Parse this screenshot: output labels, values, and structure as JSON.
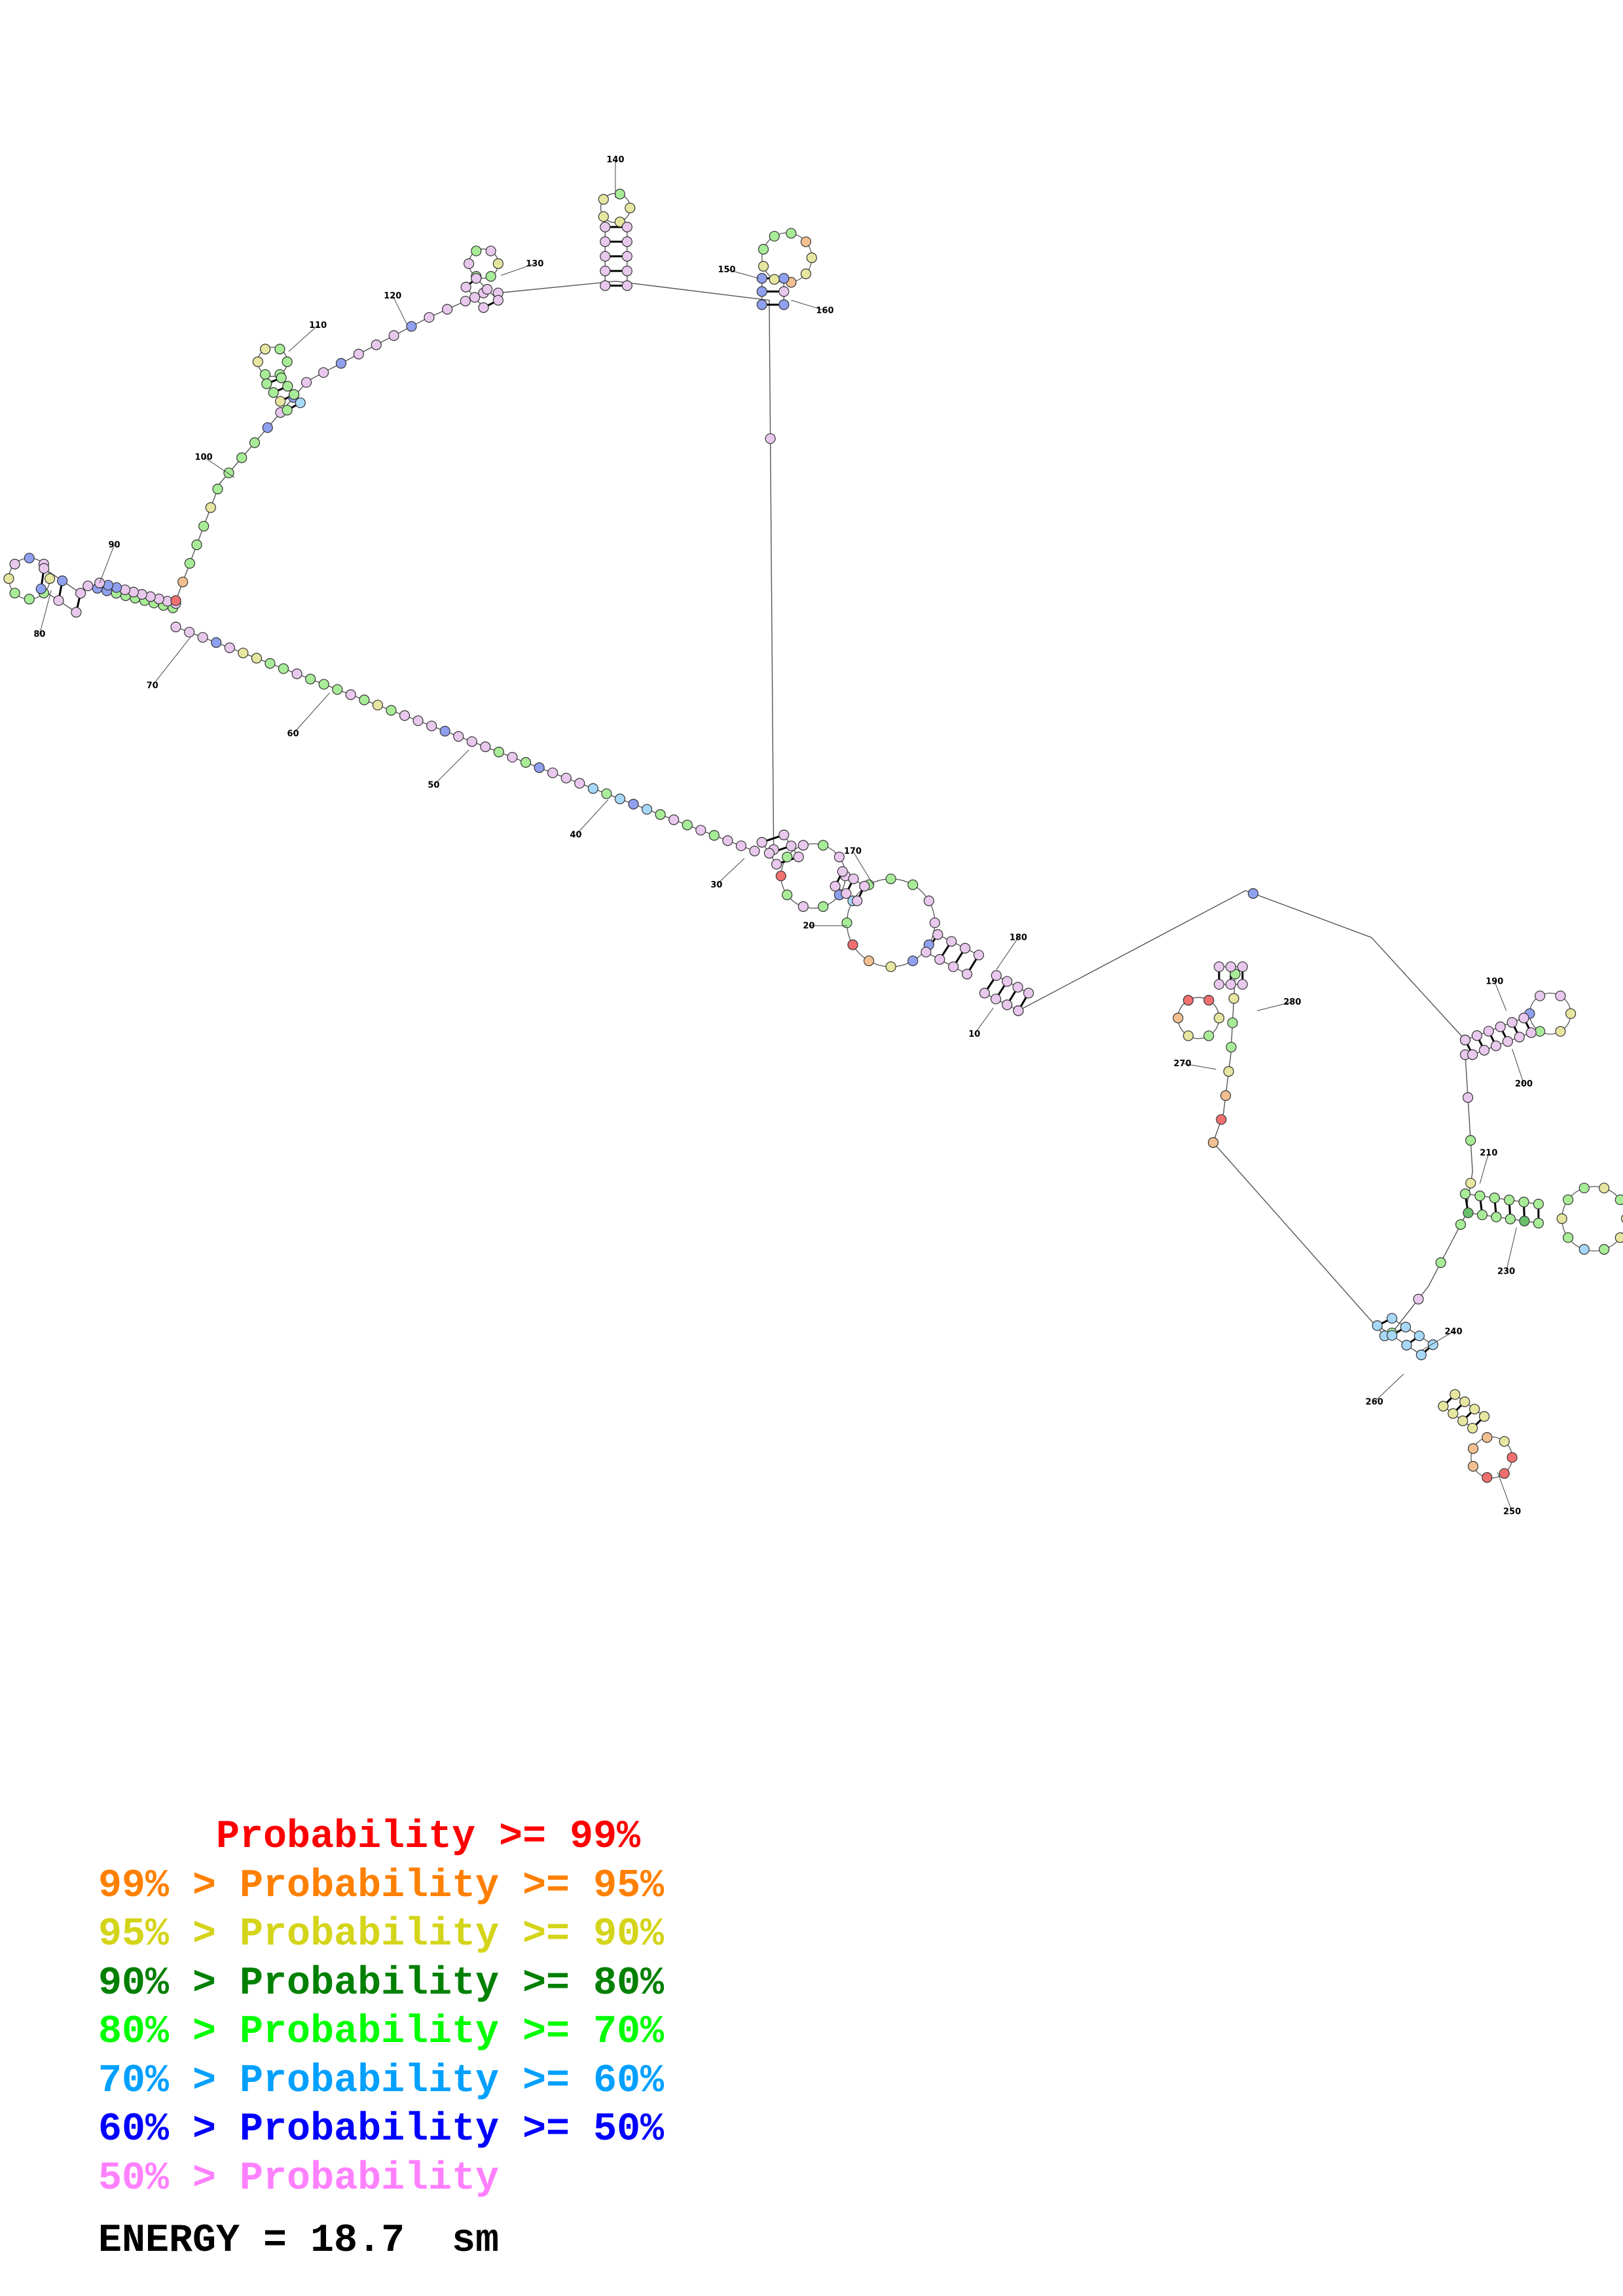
{
  "diagram": {
    "tick_labels": [
      "10",
      "20",
      "30",
      "40",
      "50",
      "60",
      "70",
      "80",
      "90",
      "100",
      "110",
      "120",
      "130",
      "140",
      "150",
      "160",
      "170",
      "180",
      "190",
      "200",
      "210",
      "230",
      "240",
      "250",
      "260",
      "270",
      "280"
    ]
  },
  "legend": {
    "rows": [
      {
        "prefix": "     ",
        "label": "Probability >= 99%",
        "color": "#ff0000"
      },
      {
        "prefix": "99% > ",
        "label": "Probability >= 95%",
        "color": "#ff8000"
      },
      {
        "prefix": "95% > ",
        "label": "Probability >= 90%",
        "color": "#d4d41a"
      },
      {
        "prefix": "90% > ",
        "label": "Probability >= 80%",
        "color": "#008000"
      },
      {
        "prefix": "80% > ",
        "label": "Probability >= 70%",
        "color": "#00ff00"
      },
      {
        "prefix": "70% > ",
        "label": "Probability >= 60%",
        "color": "#00a0ff"
      },
      {
        "prefix": "60% > ",
        "label": "Probability >= 50%",
        "color": "#0000ff"
      },
      {
        "prefix": "50% > ",
        "label": "Probability",
        "color": "#ff80ff"
      }
    ]
  },
  "energy": {
    "text": "ENERGY = 18.7  sm"
  },
  "colors": {
    "pink": "#e8c8ec",
    "green": "#a8ec98",
    "yellow": "#e6e6a0",
    "blue": "#8fa0f0",
    "cyan": "#a8d8f8",
    "orange": "#f2c090",
    "red": "#f07070",
    "dgreen": "#6ac06a"
  }
}
